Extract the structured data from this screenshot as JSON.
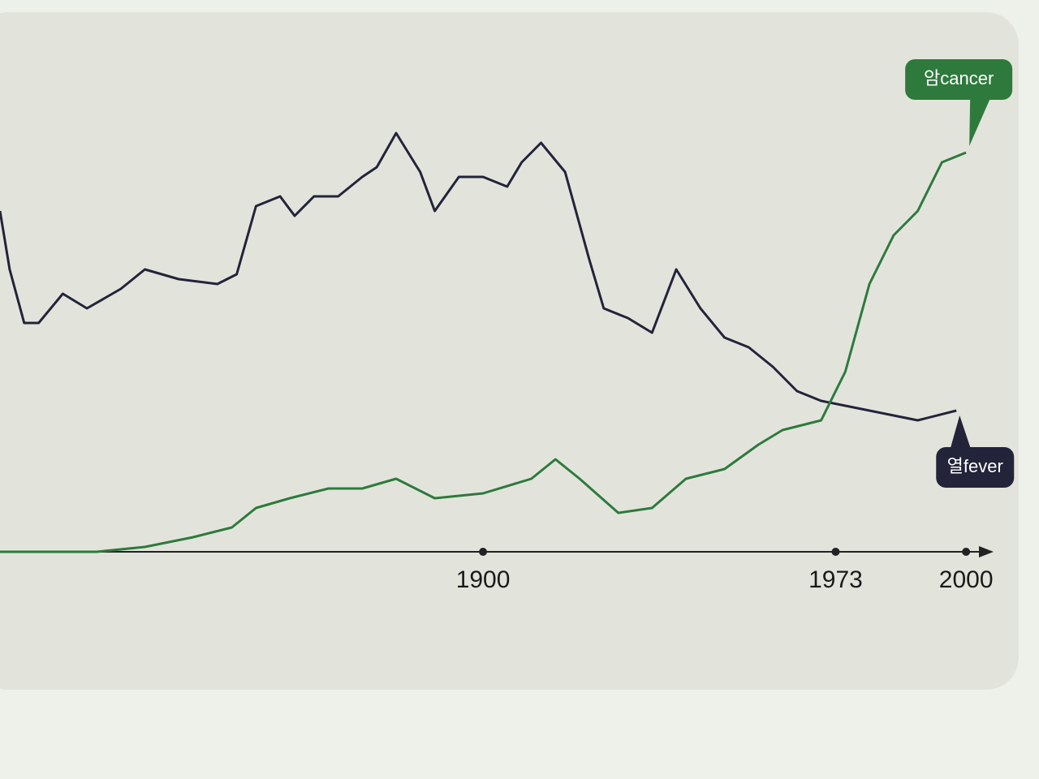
{
  "chart_data": {
    "type": "line",
    "xlim": [
      1800,
      2003
    ],
    "ylim": [
      0,
      100
    ],
    "xticks": [
      1900,
      1973,
      2000
    ],
    "grid": false,
    "series": [
      {
        "name": "열fever",
        "color": "#23233a",
        "x": [
          1800,
          1802,
          1805,
          1808,
          1813,
          1818,
          1825,
          1830,
          1837,
          1845,
          1849,
          1853,
          1858,
          1861,
          1865,
          1870,
          1875,
          1878,
          1882,
          1887,
          1890,
          1895,
          1900,
          1905,
          1908,
          1912,
          1917,
          1922,
          1925,
          1930,
          1935,
          1940,
          1945,
          1950,
          1955,
          1960,
          1965,
          1970,
          1975,
          1985,
          1990,
          1998
        ],
        "values": [
          70,
          58,
          47,
          47,
          53,
          50,
          54,
          58,
          56,
          55,
          57,
          71,
          73,
          69,
          73,
          73,
          77,
          79,
          86,
          78,
          70,
          77,
          77,
          75,
          80,
          84,
          78,
          60,
          50,
          48,
          45,
          58,
          50,
          44,
          42,
          38,
          33,
          31,
          30,
          28,
          27,
          29
        ]
      },
      {
        "name": "암cancer",
        "color": "#2e7a3c",
        "x": [
          1800,
          1820,
          1830,
          1840,
          1848,
          1853,
          1860,
          1868,
          1875,
          1882,
          1890,
          1900,
          1910,
          1915,
          1920,
          1928,
          1935,
          1942,
          1950,
          1957,
          1962,
          1970,
          1975,
          1980,
          1985,
          1990,
          1995,
          2000
        ],
        "values": [
          0,
          0,
          1,
          3,
          5,
          9,
          11,
          13,
          13,
          15,
          11,
          12,
          15,
          19,
          15,
          8,
          9,
          15,
          17,
          22,
          25,
          27,
          37,
          55,
          65,
          70,
          80,
          82
        ]
      }
    ]
  }
}
